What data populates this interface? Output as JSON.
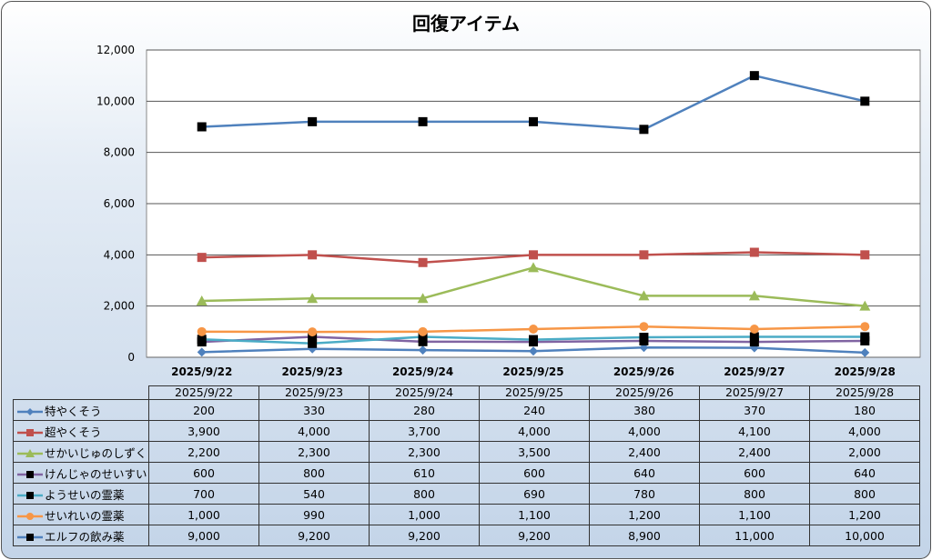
{
  "chart_data": {
    "type": "line",
    "title": "回復アイテム",
    "categories": [
      "2025/9/22",
      "2025/9/23",
      "2025/9/24",
      "2025/9/25",
      "2025/9/26",
      "2025/9/27",
      "2025/9/28"
    ],
    "ylim": [
      0,
      12000
    ],
    "yticks": [
      0,
      2000,
      4000,
      6000,
      8000,
      10000,
      12000
    ],
    "ytick_labels": [
      "0",
      "2,000",
      "4,000",
      "6,000",
      "8,000",
      "10,000",
      "12,000"
    ],
    "grid": true,
    "legend": "data-table",
    "series": [
      {
        "name": "特やくそう",
        "values": [
          200,
          330,
          280,
          240,
          380,
          370,
          180
        ],
        "labels": [
          "200",
          "330",
          "280",
          "240",
          "380",
          "370",
          "180"
        ],
        "color": "#4F81BD",
        "marker": "diamond",
        "marker_color": "#4F81BD"
      },
      {
        "name": "超やくそう",
        "values": [
          3900,
          4000,
          3700,
          4000,
          4000,
          4100,
          4000
        ],
        "labels": [
          "3,900",
          "4,000",
          "3,700",
          "4,000",
          "4,000",
          "4,100",
          "4,000"
        ],
        "color": "#C0504D",
        "marker": "square",
        "marker_color": "#C0504D"
      },
      {
        "name": "せかいじゅのしずく",
        "values": [
          2200,
          2300,
          2300,
          3500,
          2400,
          2400,
          2000
        ],
        "labels": [
          "2,200",
          "2,300",
          "2,300",
          "3,500",
          "2,400",
          "2,400",
          "2,000"
        ],
        "color": "#9BBB59",
        "marker": "triangle",
        "marker_color": "#9BBB59"
      },
      {
        "name": "けんじゃのせいすい",
        "values": [
          600,
          800,
          610,
          600,
          640,
          600,
          640
        ],
        "labels": [
          "600",
          "800",
          "610",
          "600",
          "640",
          "600",
          "640"
        ],
        "color": "#8064A2",
        "marker": "square",
        "marker_color": "#000000"
      },
      {
        "name": "ようせいの霊薬",
        "values": [
          700,
          540,
          800,
          690,
          780,
          800,
          800
        ],
        "labels": [
          "700",
          "540",
          "800",
          "690",
          "780",
          "800",
          "800"
        ],
        "color": "#4BACC6",
        "marker": "square",
        "marker_color": "#000000"
      },
      {
        "name": "せいれいの霊薬",
        "values": [
          1000,
          990,
          1000,
          1100,
          1200,
          1100,
          1200
        ],
        "labels": [
          "1,000",
          "990",
          "1,000",
          "1,100",
          "1,200",
          "1,100",
          "1,200"
        ],
        "color": "#F79646",
        "marker": "circle",
        "marker_color": "#F79646"
      },
      {
        "name": "エルフの飲み薬",
        "values": [
          9000,
          9200,
          9200,
          9200,
          8900,
          11000,
          10000
        ],
        "labels": [
          "9,000",
          "9,200",
          "9,200",
          "9,200",
          "8,900",
          "11,000",
          "10,000"
        ],
        "color": "#4F81BD",
        "marker": "square",
        "marker_color": "#000000"
      }
    ]
  }
}
